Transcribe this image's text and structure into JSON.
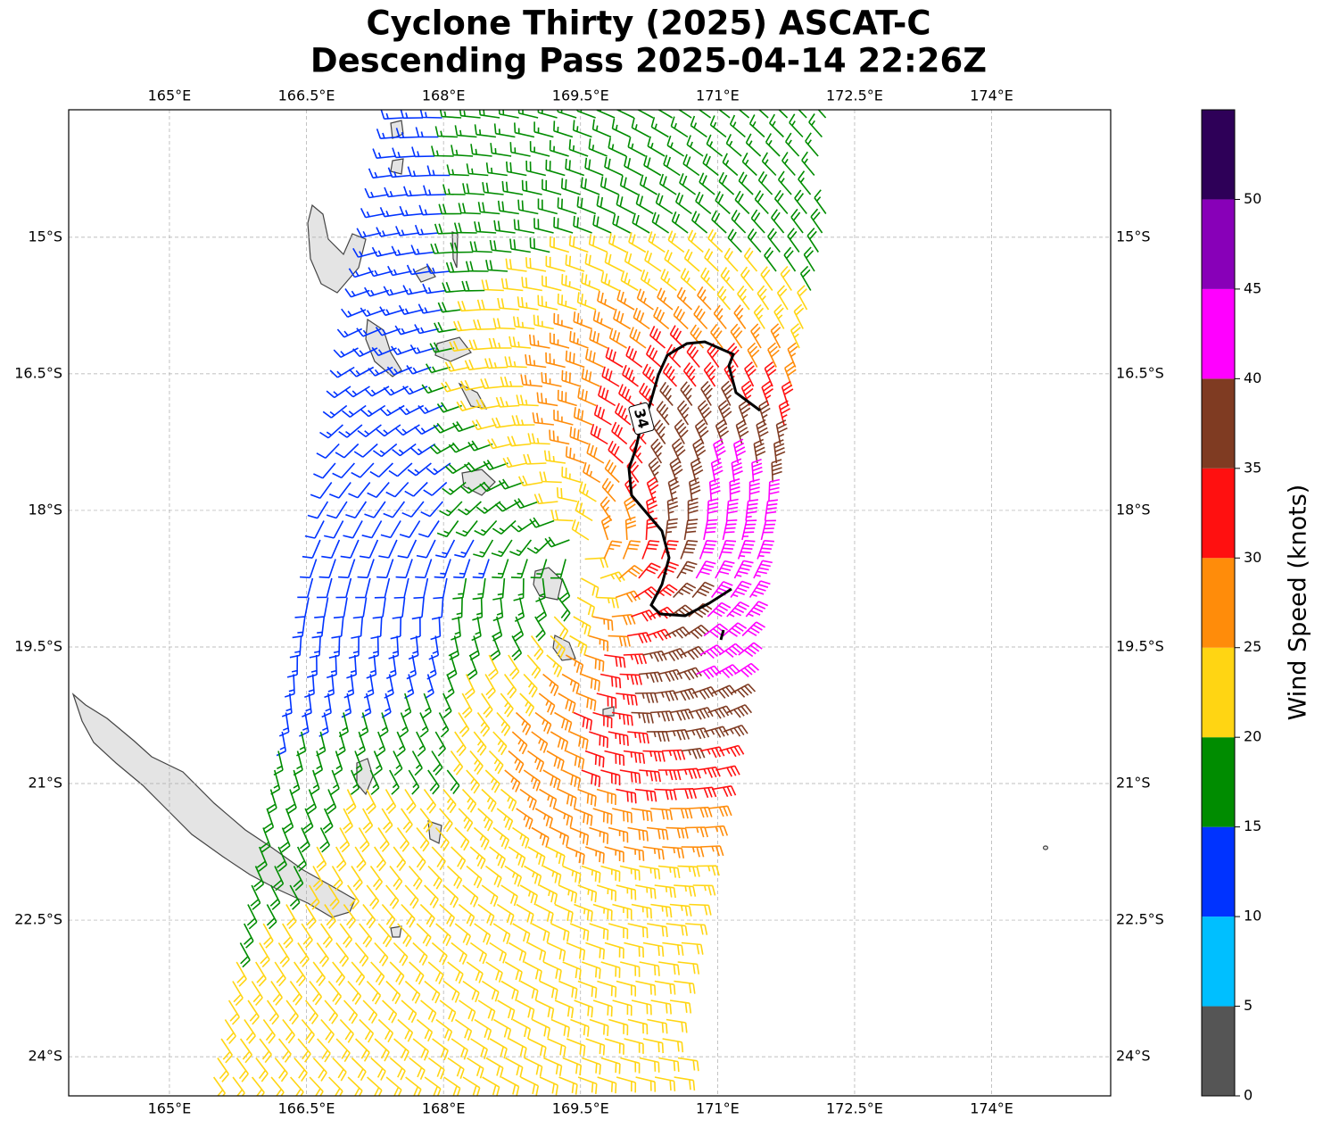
{
  "title": [
    "Cyclone Thirty (2025) ASCAT-C",
    "Descending Pass 2025-04-14 22:26Z"
  ],
  "map": {
    "type": "wind-barbs",
    "lonlim": [
      163.897,
      175.303
    ],
    "latlim": [
      -24.43,
      -13.6
    ],
    "lonticks": [
      {
        "value": 165,
        "label": "165°E"
      },
      {
        "value": 166.5,
        "label": "166.5°E"
      },
      {
        "value": 168,
        "label": "168°E"
      },
      {
        "value": 169.5,
        "label": "169.5°E"
      },
      {
        "value": 171,
        "label": "171°E"
      },
      {
        "value": 172.5,
        "label": "172.5°E"
      },
      {
        "value": 174,
        "label": "174°E"
      }
    ],
    "latticks": [
      {
        "value": -15,
        "label": "15°S"
      },
      {
        "value": -16.5,
        "label": "16.5°S"
      },
      {
        "value": -18,
        "label": "18°S"
      },
      {
        "value": -19.5,
        "label": "19.5°S"
      },
      {
        "value": -21,
        "label": "21°S"
      },
      {
        "value": -22.5,
        "label": "22.5°S"
      },
      {
        "value": -24,
        "label": "24°S"
      }
    ],
    "grid": true
  },
  "colorbar": {
    "label": "Wind Speed (knots)",
    "lim": [
      0,
      55
    ],
    "ticks": [
      0,
      5,
      10,
      15,
      20,
      25,
      30,
      35,
      40,
      45,
      50
    ],
    "colors": [
      "#555555",
      "#00bfff",
      "#0033ff",
      "#008c00",
      "#ffd513",
      "#ff8c0a",
      "#ff1010",
      "#7f3b22",
      "#ff00ff",
      "#8800b8",
      "#2e0058"
    ]
  },
  "contour": {
    "level": 34,
    "color": "#000000"
  }
}
